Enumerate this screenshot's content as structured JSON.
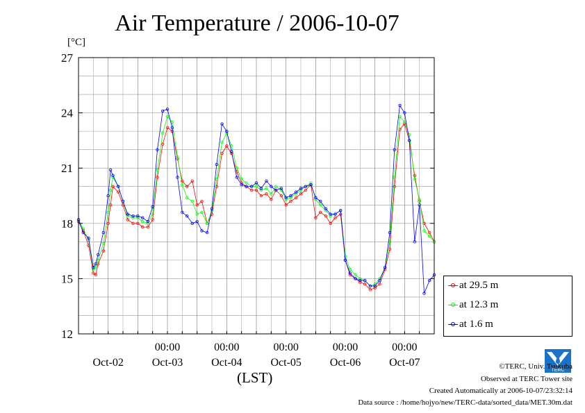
{
  "title": "Air Temperature / 2006-10-07",
  "unit_label": "[°C]",
  "x_unit_label": "(LST)",
  "colors": {
    "at_29_5": "#ff0000",
    "at_12_3": "#00ff00",
    "at_1_6": "#0000ff",
    "grid": "#999999"
  },
  "footer": {
    "copyright": "©TERC, Univ. Tsukuba",
    "observed": "Observed at TERC Tower site",
    "created": "Created Automatically at 2006-10-07/23:32:14",
    "source": "Data source : /home/hojyo/new/TERC-data/sorted_data/MET.30m.dat"
  },
  "logo_text": "TERC",
  "chart_data": {
    "type": "line",
    "title": "Air Temperature / 2006-10-07",
    "ylabel": "[°C]",
    "xlabel": "(LST)",
    "ylim": [
      12,
      27
    ],
    "yticks": [
      "12",
      "15",
      "18",
      "21",
      "24",
      "27"
    ],
    "xlim": [
      -1.0,
      5.0
    ],
    "x_units": "days since 2006-10-02 00:00",
    "xtick_time_labels": [
      "00:00",
      "00:00",
      "00:00",
      "00:00",
      "00:00"
    ],
    "xtick_time_positions": [
      0.5,
      1.5,
      2.5,
      3.5,
      4.5
    ],
    "xtick_date_labels": [
      "Oct-02",
      "Oct-03",
      "Oct-04",
      "Oct-05",
      "Oct-06",
      "Oct-07"
    ],
    "xtick_date_positions": [
      -0.5,
      0.5,
      1.5,
      2.5,
      3.5,
      4.5
    ],
    "grid": true,
    "legend_position": "right-bottom",
    "series": [
      {
        "name": "at 29.5 m",
        "color": "#ff0000",
        "x": [
          -1.0,
          -0.92,
          -0.83,
          -0.75,
          -0.71,
          -0.67,
          -0.58,
          -0.5,
          -0.46,
          -0.42,
          -0.33,
          -0.25,
          -0.17,
          -0.08,
          0.0,
          0.08,
          0.17,
          0.25,
          0.33,
          0.42,
          0.5,
          0.58,
          0.67,
          0.75,
          0.83,
          0.92,
          1.0,
          1.08,
          1.17,
          1.25,
          1.33,
          1.42,
          1.5,
          1.58,
          1.67,
          1.75,
          1.83,
          1.92,
          2.0,
          2.08,
          2.17,
          2.25,
          2.33,
          2.42,
          2.5,
          2.58,
          2.67,
          2.75,
          2.83,
          2.92,
          3.0,
          3.08,
          3.17,
          3.25,
          3.33,
          3.42,
          3.5,
          3.58,
          3.67,
          3.75,
          3.83,
          3.92,
          4.0,
          4.08,
          4.17,
          4.25,
          4.33,
          4.42,
          4.5,
          4.58,
          4.67,
          4.75,
          4.83,
          4.92,
          5.0
        ],
        "y": [
          18.1,
          17.6,
          16.8,
          15.3,
          15.2,
          15.8,
          16.5,
          18.0,
          19.0,
          20.0,
          19.7,
          19.0,
          18.2,
          18.0,
          18.0,
          17.8,
          17.8,
          18.2,
          20.5,
          22.3,
          23.2,
          23.0,
          21.5,
          20.3,
          20.0,
          20.3,
          19.0,
          19.2,
          18.0,
          18.5,
          20.0,
          21.8,
          22.2,
          21.8,
          20.8,
          20.2,
          20.0,
          19.8,
          19.8,
          19.5,
          19.6,
          19.3,
          19.8,
          19.5,
          19.0,
          19.2,
          19.4,
          19.6,
          19.8,
          20.1,
          18.3,
          18.6,
          18.4,
          18.0,
          18.3,
          18.5,
          16.0,
          15.2,
          15.0,
          14.8,
          14.7,
          14.4,
          14.5,
          14.7,
          15.5,
          16.6,
          20.0,
          23.1,
          23.4,
          22.5,
          20.6,
          19.2,
          18.0,
          17.5,
          17.0
        ]
      },
      {
        "name": "at 12.3 m",
        "color": "#00ff00",
        "x": [
          -1.0,
          -0.92,
          -0.83,
          -0.75,
          -0.71,
          -0.67,
          -0.58,
          -0.5,
          -0.46,
          -0.42,
          -0.33,
          -0.25,
          -0.17,
          -0.08,
          0.0,
          0.08,
          0.17,
          0.25,
          0.33,
          0.42,
          0.5,
          0.58,
          0.67,
          0.75,
          0.83,
          0.92,
          1.0,
          1.08,
          1.17,
          1.25,
          1.33,
          1.42,
          1.5,
          1.58,
          1.67,
          1.75,
          1.83,
          1.92,
          2.0,
          2.08,
          2.17,
          2.25,
          2.33,
          2.42,
          2.5,
          2.58,
          2.67,
          2.75,
          2.83,
          2.92,
          3.0,
          3.08,
          3.17,
          3.25,
          3.33,
          3.42,
          3.5,
          3.58,
          3.67,
          3.75,
          3.83,
          3.92,
          4.0,
          4.08,
          4.17,
          4.25,
          4.33,
          4.42,
          4.5,
          4.58,
          4.67,
          4.75,
          4.83,
          4.92,
          5.0
        ],
        "y": [
          18.2,
          17.7,
          17.1,
          15.5,
          15.6,
          16.0,
          16.9,
          18.6,
          19.8,
          20.5,
          20.0,
          19.2,
          18.4,
          18.3,
          18.3,
          18.1,
          18.0,
          18.5,
          20.9,
          22.9,
          23.8,
          23.5,
          21.6,
          20.1,
          19.4,
          19.2,
          18.5,
          18.6,
          18.0,
          18.7,
          20.4,
          22.4,
          22.9,
          22.2,
          21.0,
          20.4,
          20.2,
          20.0,
          20.0,
          19.8,
          19.9,
          19.6,
          20.0,
          19.8,
          19.3,
          19.4,
          19.6,
          19.8,
          20.0,
          20.2,
          19.3,
          19.0,
          18.7,
          18.4,
          18.5,
          18.7,
          16.2,
          15.5,
          15.2,
          15.0,
          14.9,
          14.6,
          14.7,
          15.0,
          15.6,
          17.0,
          20.5,
          23.8,
          23.5,
          22.8,
          20.4,
          19.3,
          17.6,
          17.3,
          17.0
        ]
      },
      {
        "name": "at 1.6 m",
        "color": "#0000ff",
        "x": [
          -1.0,
          -0.92,
          -0.83,
          -0.75,
          -0.71,
          -0.67,
          -0.58,
          -0.5,
          -0.46,
          -0.42,
          -0.33,
          -0.25,
          -0.17,
          -0.08,
          0.0,
          0.08,
          0.17,
          0.25,
          0.33,
          0.42,
          0.5,
          0.58,
          0.67,
          0.75,
          0.83,
          0.92,
          1.0,
          1.08,
          1.17,
          1.25,
          1.33,
          1.42,
          1.5,
          1.58,
          1.67,
          1.75,
          1.83,
          1.92,
          2.0,
          2.08,
          2.17,
          2.25,
          2.33,
          2.42,
          2.5,
          2.58,
          2.67,
          2.75,
          2.83,
          2.92,
          3.0,
          3.08,
          3.17,
          3.25,
          3.33,
          3.42,
          3.5,
          3.58,
          3.67,
          3.75,
          3.83,
          3.92,
          4.0,
          4.08,
          4.17,
          4.25,
          4.33,
          4.42,
          4.5,
          4.58,
          4.67,
          4.75,
          4.83,
          4.92,
          5.0
        ],
        "y": [
          18.2,
          17.5,
          17.2,
          15.6,
          15.8,
          16.3,
          17.5,
          19.5,
          20.9,
          20.6,
          20.0,
          19.2,
          18.5,
          18.4,
          18.4,
          18.3,
          18.1,
          18.9,
          22.0,
          24.1,
          24.2,
          23.2,
          20.5,
          18.6,
          18.4,
          18.0,
          18.1,
          17.6,
          17.5,
          18.8,
          21.2,
          23.4,
          23.0,
          21.9,
          20.5,
          20.1,
          20.0,
          20.0,
          20.2,
          19.9,
          20.3,
          20.0,
          19.8,
          19.9,
          19.4,
          19.5,
          19.7,
          19.9,
          20.0,
          20.1,
          19.4,
          19.2,
          18.8,
          18.5,
          18.5,
          18.7,
          16.0,
          15.3,
          15.0,
          14.9,
          14.9,
          14.6,
          14.6,
          14.9,
          15.6,
          17.5,
          22.0,
          24.4,
          24.0,
          22.5,
          17.0,
          19.0,
          14.2,
          14.9,
          15.2
        ]
      }
    ]
  }
}
